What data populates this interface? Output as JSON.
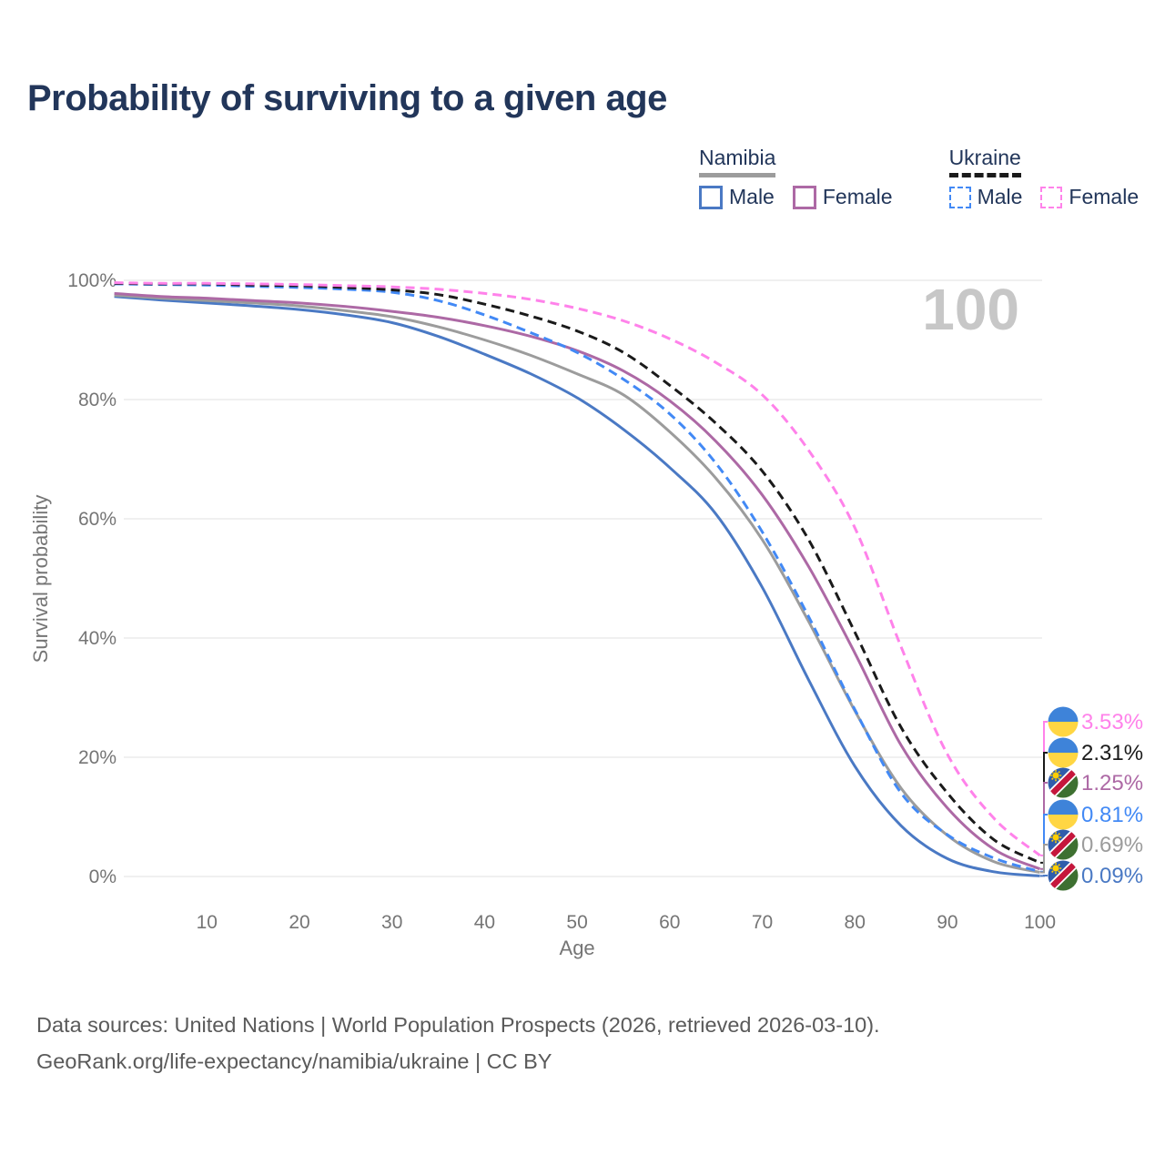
{
  "title": "Probability of surviving to a given age",
  "watermark": "100",
  "legend": {
    "groups": [
      {
        "country": "Namibia",
        "line_style": "solid",
        "line_color": "#9c9c9c",
        "items": [
          {
            "label": "Male",
            "series": "namibia-male"
          },
          {
            "label": "Female",
            "series": "namibia-female"
          }
        ]
      },
      {
        "country": "Ukraine",
        "line_style": "dashed",
        "line_color": "#1a1a1a",
        "items": [
          {
            "label": "Male",
            "series": "ukraine-male"
          },
          {
            "label": "Female",
            "series": "ukraine-female"
          }
        ]
      }
    ]
  },
  "chart_data": {
    "type": "line",
    "title": "Probability of surviving to a given age",
    "xlabel": "Age",
    "ylabel": "Survival probability",
    "xlim": [
      0,
      100
    ],
    "ylim": [
      0,
      100
    ],
    "x_ticks": [
      10,
      20,
      30,
      40,
      50,
      60,
      70,
      80,
      90,
      100
    ],
    "y_ticks": [
      0,
      20,
      40,
      60,
      80,
      100
    ],
    "y_tick_suffix": "%",
    "grid": "horizontal",
    "legend_position": "top-right",
    "hovered_age_label": "100",
    "x": [
      0,
      5,
      10,
      15,
      20,
      25,
      30,
      35,
      40,
      45,
      50,
      55,
      60,
      65,
      70,
      75,
      80,
      85,
      90,
      95,
      100
    ],
    "series": [
      {
        "name": "Namibia Male",
        "slug": "namibia-male",
        "country": "Namibia",
        "sex": "Male",
        "color": "#4a79c4",
        "dashed": false,
        "flag": "na",
        "flag_name": "namibia-flag-icon",
        "end_label": "0.09%",
        "values": [
          97.3,
          96.7,
          96.2,
          95.7,
          95.1,
          94.2,
          92.9,
          90.6,
          87.6,
          84.3,
          80.3,
          75.0,
          68.6,
          60.8,
          48.5,
          33.0,
          18.5,
          8.5,
          3.0,
          0.8,
          0.09
        ]
      },
      {
        "name": "Namibia Both sexes",
        "slug": "namibia-both",
        "country": "Namibia",
        "sex": "Both",
        "color": "#9c9c9c",
        "dashed": false,
        "flag": "na",
        "flag_name": "namibia-flag-icon",
        "end_label": "0.69%",
        "values": [
          97.5,
          97.0,
          96.6,
          96.2,
          95.7,
          94.9,
          93.9,
          92.2,
          90.0,
          87.4,
          84.3,
          80.8,
          74.6,
          66.8,
          56.5,
          42.8,
          27.8,
          14.8,
          6.9,
          2.5,
          0.69
        ]
      },
      {
        "name": "Namibia Female",
        "slug": "namibia-female",
        "country": "Namibia",
        "sex": "Female",
        "color": "#ad69a5",
        "dashed": false,
        "flag": "na",
        "flag_name": "namibia-flag-icon",
        "end_label": "1.25%",
        "values": [
          97.8,
          97.3,
          97.0,
          96.6,
          96.2,
          95.6,
          94.8,
          93.8,
          92.4,
          90.6,
          88.2,
          84.8,
          79.8,
          73.0,
          64.0,
          52.0,
          37.5,
          22.0,
          11.5,
          4.6,
          1.25
        ]
      },
      {
        "name": "Ukraine Male",
        "slug": "ukraine-male",
        "country": "Ukraine",
        "sex": "Male",
        "color": "#4289f5",
        "dashed": true,
        "flag": "ua",
        "flag_name": "ukraine-flag-icon",
        "end_label": "0.81%",
        "values": [
          99.4,
          99.3,
          99.2,
          99.0,
          98.8,
          98.5,
          98.0,
          96.6,
          94.2,
          91.2,
          87.9,
          83.4,
          77.6,
          69.3,
          57.8,
          43.6,
          28.0,
          14.0,
          7.0,
          3.1,
          0.81
        ]
      },
      {
        "name": "Ukraine Both sexes",
        "slug": "ukraine-both",
        "country": "Ukraine",
        "sex": "Both",
        "color": "#1a1a1a",
        "dashed": true,
        "flag": "ua",
        "flag_name": "ukraine-flag-icon",
        "end_label": "2.31%",
        "values": [
          99.5,
          99.4,
          99.4,
          99.2,
          99.1,
          98.8,
          98.4,
          97.6,
          96.0,
          94.0,
          91.5,
          87.9,
          82.4,
          76.0,
          68.0,
          56.5,
          41.0,
          25.0,
          14.0,
          6.2,
          2.31
        ]
      },
      {
        "name": "Ukraine Female",
        "slug": "ukraine-female",
        "country": "Ukraine",
        "sex": "Female",
        "color": "#ff82ea",
        "dashed": true,
        "flag": "ua",
        "flag_name": "ukraine-flag-icon",
        "end_label": "3.53%",
        "values": [
          99.6,
          99.5,
          99.5,
          99.4,
          99.3,
          99.1,
          98.9,
          98.5,
          97.8,
          96.8,
          95.3,
          93.2,
          90.2,
          86.2,
          80.8,
          71.5,
          58.5,
          38.5,
          20.5,
          9.8,
          3.53
        ]
      }
    ]
  },
  "footer": {
    "line1": "Data sources: United Nations | World Population Prospects (2026, retrieved 2026-03-10).",
    "line2": "GeoRank.org/life-expectancy/namibia/ukraine | CC BY"
  },
  "colors": {
    "title_text": "#22365a",
    "axis_text": "#757575",
    "gridline": "#ebebeb",
    "watermark": "#c7c7c7",
    "footer_text": "#5a5a5a",
    "ukraine_flag_blue": "#3e83d9",
    "ukraine_flag_yellow": "#ffd643",
    "namibia_flag_blue": "#2f5dab",
    "namibia_flag_red": "#c5173c",
    "namibia_flag_green": "#3e7031",
    "namibia_flag_sun": "#ffce00"
  }
}
